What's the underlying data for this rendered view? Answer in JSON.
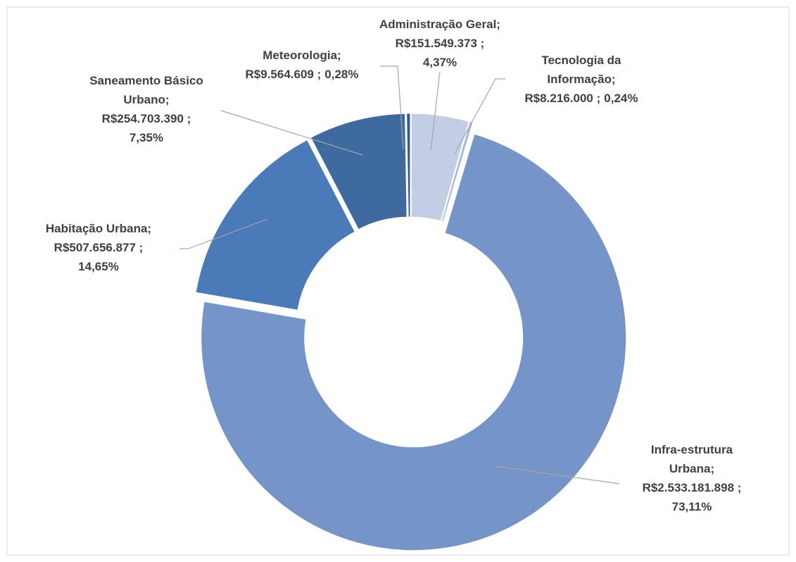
{
  "chart_data": {
    "type": "donut",
    "categories": [
      [
        "Administração Geral;"
      ],
      [
        "Tecnologia da",
        "Informação;"
      ],
      [
        "Infra-estrutura",
        "Urbana;"
      ],
      [
        "Habitação Urbana;"
      ],
      [
        "Saneamento Básico",
        "Urbano;"
      ],
      [
        "Meteorologia;"
      ]
    ],
    "values": [
      151549373,
      8216000,
      2533181898,
      507656877,
      254703390,
      9564609
    ],
    "value_labels": [
      "R$151.549.373 ;",
      "R$8.216.000 ;",
      "R$2.533.181.898 ;",
      "R$507.656.877 ;",
      "R$254.703.390 ;",
      "R$9.564.609 ;"
    ],
    "percentages": [
      4.37,
      0.24,
      73.11,
      14.65,
      7.35,
      0.28
    ],
    "percent_labels": [
      "4,37%",
      "0,24%",
      "73,11%",
      "14,65%",
      "7,35%",
      "0,28%"
    ],
    "colors": [
      "#c3cde4",
      "#a3b6dc",
      "#7595c8",
      "#4a7ab8",
      "#3f6a9f",
      "#2f5b91"
    ]
  }
}
